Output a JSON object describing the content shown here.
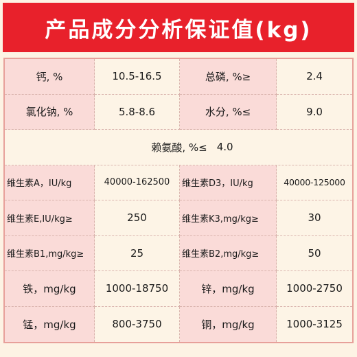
{
  "banner": {
    "title": "产品成分分析保证值(kg)"
  },
  "rows": [
    {
      "l1": "钙, %",
      "v1": "10.5-16.5",
      "l2": "总磷, %≥",
      "v2": "2.4"
    },
    {
      "l1": "氯化钠, %",
      "v1": "5.8-8.6",
      "l2": "水分, %≤",
      "v2": "9.0"
    },
    {
      "full_label": "赖氨酸, %≤",
      "full_value": "4.0"
    },
    {
      "l1": "维生素A，IU/kg",
      "v1": "40000-162500",
      "l2": "维生素D3，IU/kg",
      "v2": "40000-125000"
    },
    {
      "l1": "维生素E,IU/kg≥",
      "v1": "250",
      "l2": "维生素K3,mg/kg≥",
      "v2": "30"
    },
    {
      "l1": "维生素B1,mg/kg≥",
      "v1": "25",
      "l2": "维生素B2,mg/kg≥",
      "v2": "50"
    },
    {
      "l1": "铁，mg/kg",
      "v1": "1000-18750",
      "l2": "锌，mg/kg",
      "v2": "1000-2750"
    },
    {
      "l1": "锰，mg/kg",
      "v1": "800-3750",
      "l2": "铜，mg/kg",
      "v2": "1000-3125"
    }
  ],
  "colors": {
    "banner": "#e8212b",
    "label_bg": "#fadbd8",
    "value_bg": "#fdf4e6",
    "border": "#e7a09a"
  }
}
